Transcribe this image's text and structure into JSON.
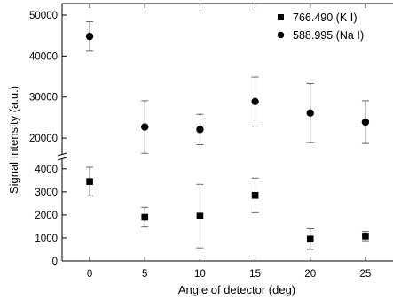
{
  "chart_data": {
    "type": "scatter",
    "title": "",
    "xlabel": "Angle of detector (deg)",
    "ylabel": "Signal Intensity (a.u.)",
    "x_ticks": [
      0,
      5,
      10,
      15,
      20,
      25
    ],
    "xlim": [
      -2.5,
      27.5
    ],
    "y_axis_break": true,
    "upper_panel": {
      "ylim": [
        17000,
        50000
      ],
      "y_ticks": [
        20000,
        30000,
        40000,
        50000
      ]
    },
    "lower_panel": {
      "ylim": [
        0,
        4300
      ],
      "y_ticks": [
        0,
        1000,
        2000,
        3000,
        4000
      ]
    },
    "legend_position": "top-right",
    "series": [
      {
        "name": "766.490 (K Ⅰ)",
        "marker": "square",
        "panel": "lower",
        "x": [
          0,
          5,
          10,
          15,
          20,
          25
        ],
        "y": [
          3450,
          1900,
          1950,
          2850,
          950,
          1080
        ],
        "error": [
          620,
          430,
          1380,
          750,
          450,
          200
        ]
      },
      {
        "name": "588.995 (Na Ⅰ)",
        "marker": "circle",
        "panel": "upper",
        "x": [
          0,
          5,
          10,
          15,
          20,
          25
        ],
        "y": [
          44800,
          22700,
          22100,
          28900,
          26100,
          23900
        ],
        "error": [
          3600,
          6400,
          3700,
          6000,
          7200,
          5200
        ]
      }
    ]
  }
}
